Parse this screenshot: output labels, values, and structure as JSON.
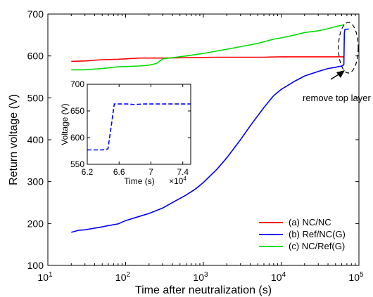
{
  "chart_data": [
    {
      "type": "line",
      "title": "",
      "xlabel": "Time after neutralization (s)",
      "ylabel": "Return voltage (V)",
      "xscale": "log",
      "xlim": [
        10,
        100000
      ],
      "ylim": [
        100,
        700
      ],
      "x_ticks": [
        10,
        100,
        1000,
        10000,
        100000
      ],
      "x_tick_labels": [
        {
          "base": "10",
          "exp": "1"
        },
        {
          "base": "10",
          "exp": "2"
        },
        {
          "base": "10",
          "exp": "3"
        },
        {
          "base": "10",
          "exp": "4"
        },
        {
          "base": "10",
          "exp": "5"
        }
      ],
      "y_ticks": [
        100,
        200,
        300,
        400,
        500,
        600,
        700
      ],
      "grid": false,
      "legend_position": "bottom-right",
      "series": [
        {
          "name": "(a) NC/NC",
          "color": "#ff0000",
          "x": [
            20,
            30,
            50,
            80,
            150,
            300,
            700,
            1500,
            3000,
            6000,
            10000,
            20000,
            40000,
            65000
          ],
          "y": [
            587,
            588,
            591,
            592,
            595,
            595,
            596,
            597,
            597,
            597,
            598,
            598,
            598,
            598
          ]
        },
        {
          "name": "(b) Ref/NC(G)",
          "color": "#0000ff",
          "x": [
            20,
            25,
            30,
            40,
            50,
            60,
            80,
            100,
            150,
            200,
            300,
            400,
            600,
            800,
            1000,
            1500,
            2000,
            3000,
            4000,
            6000,
            8000,
            10000,
            15000,
            20000,
            30000,
            40000,
            50000,
            60000,
            62000,
            64000,
            65000,
            66000,
            67000,
            70000,
            74000
          ],
          "y": [
            179,
            184,
            185,
            189,
            192,
            195,
            199,
            207,
            217,
            224,
            237,
            250,
            268,
            283,
            298,
            330,
            357,
            400,
            433,
            477,
            505,
            520,
            540,
            552,
            563,
            570,
            573,
            576,
            577,
            580,
            655,
            663,
            663,
            664,
            664
          ]
        },
        {
          "name": "(c) NC/Ref(G)",
          "color": "#00dd00",
          "x": [
            20,
            30,
            50,
            80,
            150,
            200,
            250,
            300,
            600,
            1000,
            2000,
            3000,
            5000,
            8000,
            10000,
            15000,
            20000,
            30000,
            40000,
            50000,
            60000,
            65000
          ],
          "y": [
            567,
            567,
            570,
            574,
            576,
            578,
            582,
            593,
            600,
            606,
            616,
            622,
            630,
            640,
            643,
            650,
            656,
            660,
            665,
            670,
            673,
            675
          ]
        }
      ],
      "annotations": [
        {
          "text": "remove top layer",
          "x": 45000,
          "y": 492
        }
      ]
    },
    {
      "type": "line",
      "title": "",
      "xlabel": "Time (s)",
      "ylabel": "Voltage (V)",
      "xlim": [
        6.2,
        7.5
      ],
      "ylim": [
        550,
        700
      ],
      "x_ticks": [
        6.2,
        6.6,
        7.0,
        7.4
      ],
      "x_tick_labels": [
        "6.2",
        "6.6",
        "7",
        "7.4"
      ],
      "x_multiplier": {
        "base": "×10",
        "exp": "4"
      },
      "y_ticks": [
        550,
        600,
        650,
        700
      ],
      "grid": false,
      "series": [
        {
          "name": "(b) Ref/NC(G)",
          "color": "#0000ff",
          "dashed": true,
          "x": [
            6.2,
            6.3,
            6.4,
            6.46,
            6.5,
            6.54,
            6.6,
            6.7,
            6.8,
            6.9,
            7.0,
            7.1,
            7.2,
            7.3,
            7.4,
            7.5
          ],
          "y": [
            577,
            577,
            577,
            579,
            620,
            663,
            663,
            663,
            662,
            663,
            663,
            663,
            663,
            663,
            663,
            663
          ]
        }
      ]
    }
  ]
}
